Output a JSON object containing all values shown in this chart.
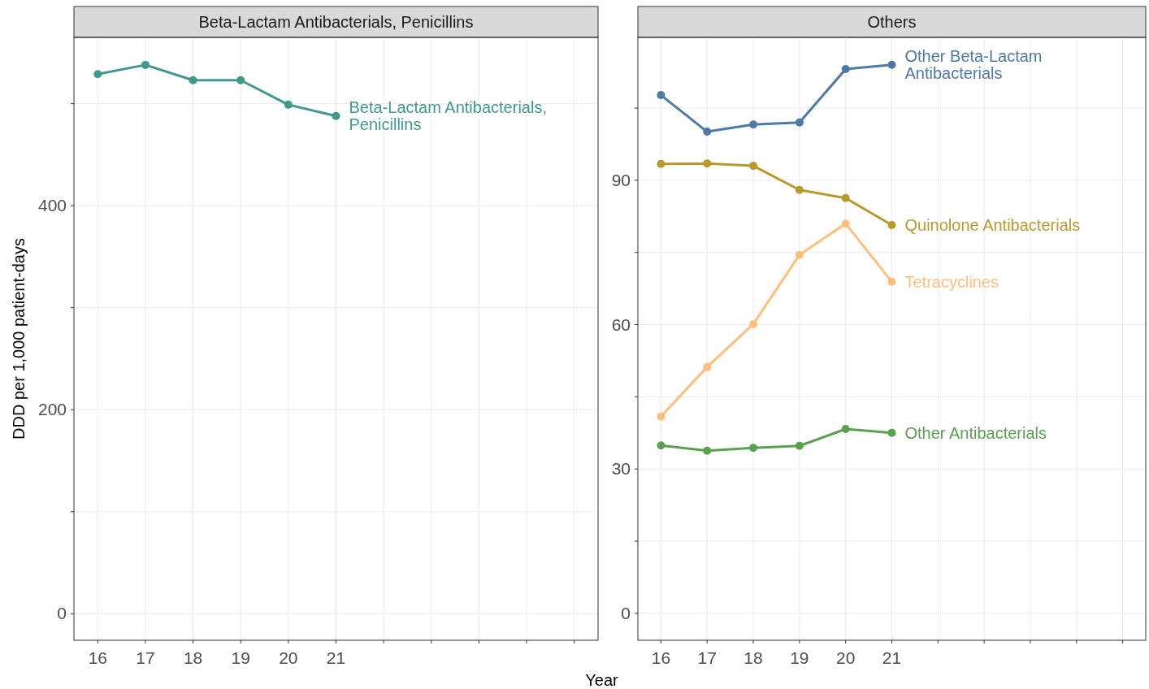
{
  "chart_data": [
    {
      "type": "line",
      "title": "Beta-Lactam Antibacterials, Penicillins",
      "ylabel": "DDD per 1,000 patient-days",
      "x": [
        16,
        17,
        18,
        19,
        20,
        21
      ],
      "xlim": [
        15.5,
        26.5
      ],
      "xticks": [
        16,
        17,
        18,
        19,
        20,
        21,
        {
          "value": 22,
          "label": null
        },
        {
          "value": 23,
          "label": null
        },
        {
          "value": 24,
          "label": null
        },
        {
          "value": 25,
          "label": null
        },
        {
          "value": 26,
          "label": null
        }
      ],
      "ylim": [
        -26,
        565
      ],
      "yticks": [
        0,
        {
          "value": 100,
          "label": null
        },
        200,
        {
          "value": 300,
          "label": null
        },
        400,
        {
          "value": 500,
          "label": null
        }
      ],
      "grid": true,
      "marker": "circle",
      "line_style": "solid",
      "series": [
        {
          "name": "Beta-Lactam Antibacterials, Penicillins",
          "color": "#41998d",
          "values": [
            529,
            538,
            523,
            523,
            499,
            488
          ]
        }
      ]
    },
    {
      "type": "line",
      "title": "Others",
      "xlabel": "Year",
      "x": [
        16,
        17,
        18,
        19,
        20,
        21
      ],
      "xlim": [
        15.5,
        26.5
      ],
      "xticks": [
        16,
        17,
        18,
        19,
        20,
        21,
        {
          "value": 22,
          "label": null
        },
        {
          "value": 23,
          "label": null
        },
        {
          "value": 24,
          "label": null
        },
        {
          "value": 25,
          "label": null
        },
        {
          "value": 26,
          "label": null
        }
      ],
      "ylim": [
        -5.6,
        119.7
      ],
      "yticks": [
        0,
        {
          "value": 15,
          "label": null
        },
        30,
        {
          "value": 45,
          "label": null
        },
        60,
        {
          "value": 75,
          "label": null
        },
        90,
        {
          "value": 105,
          "label": null
        }
      ],
      "grid": true,
      "marker": "circle",
      "line_style": "solid",
      "series": [
        {
          "name": "Other Beta-Lactam Antibacterials",
          "color": "#4e79a7",
          "values": [
            107.7,
            100.1,
            101.6,
            102.0,
            113.1,
            114.0
          ]
        },
        {
          "name": "Quinolone Antibacterials",
          "color": "#b89a2c",
          "values": [
            93.4,
            93.5,
            93.0,
            88.0,
            86.3,
            80.7
          ]
        },
        {
          "name": "Tetracyclines",
          "color": "#ffbe7d",
          "values": [
            40.9,
            51.2,
            60.1,
            74.5,
            81.0,
            68.9
          ]
        },
        {
          "name": "Other Antibacterials",
          "color": "#59a14f",
          "values": [
            34.9,
            33.8,
            34.4,
            34.8,
            38.3,
            37.5
          ]
        }
      ]
    }
  ]
}
